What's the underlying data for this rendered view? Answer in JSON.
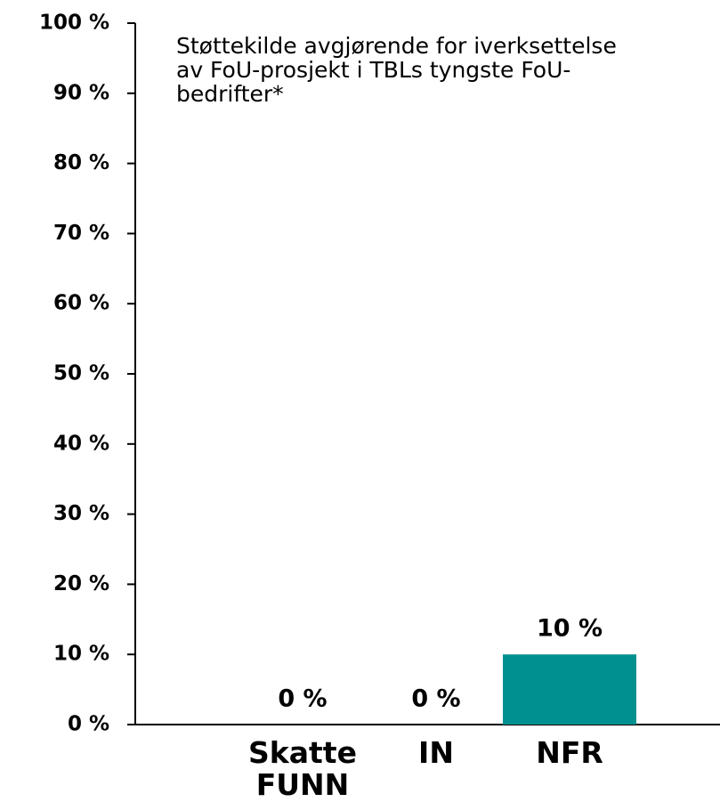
{
  "chart_data": {
    "type": "bar",
    "title": "Støttekilde avgjørende for iverksettelse av FoU-prosjekt i TBLs tyngste FoU-bedrifter*",
    "categories": [
      "Skatte FUNN",
      "IN",
      "NFR"
    ],
    "values": [
      0,
      0,
      10
    ],
    "value_labels": [
      "0 %",
      "0 %",
      "10 %"
    ],
    "color": "#009090",
    "ylim": [
      0,
      100
    ],
    "yticks": [
      {
        "value": 0,
        "label": "0 %"
      },
      {
        "value": 10,
        "label": "10 %"
      },
      {
        "value": 20,
        "label": "20 %"
      },
      {
        "value": 30,
        "label": "30 %"
      },
      {
        "value": 40,
        "label": "40 %"
      },
      {
        "value": 50,
        "label": "50 %"
      },
      {
        "value": 60,
        "label": "60 %"
      },
      {
        "value": 70,
        "label": "70 %"
      },
      {
        "value": 80,
        "label": "80 %"
      },
      {
        "value": 90,
        "label": "90 %"
      },
      {
        "value": 100,
        "label": "100 %"
      }
    ],
    "grid": false
  }
}
